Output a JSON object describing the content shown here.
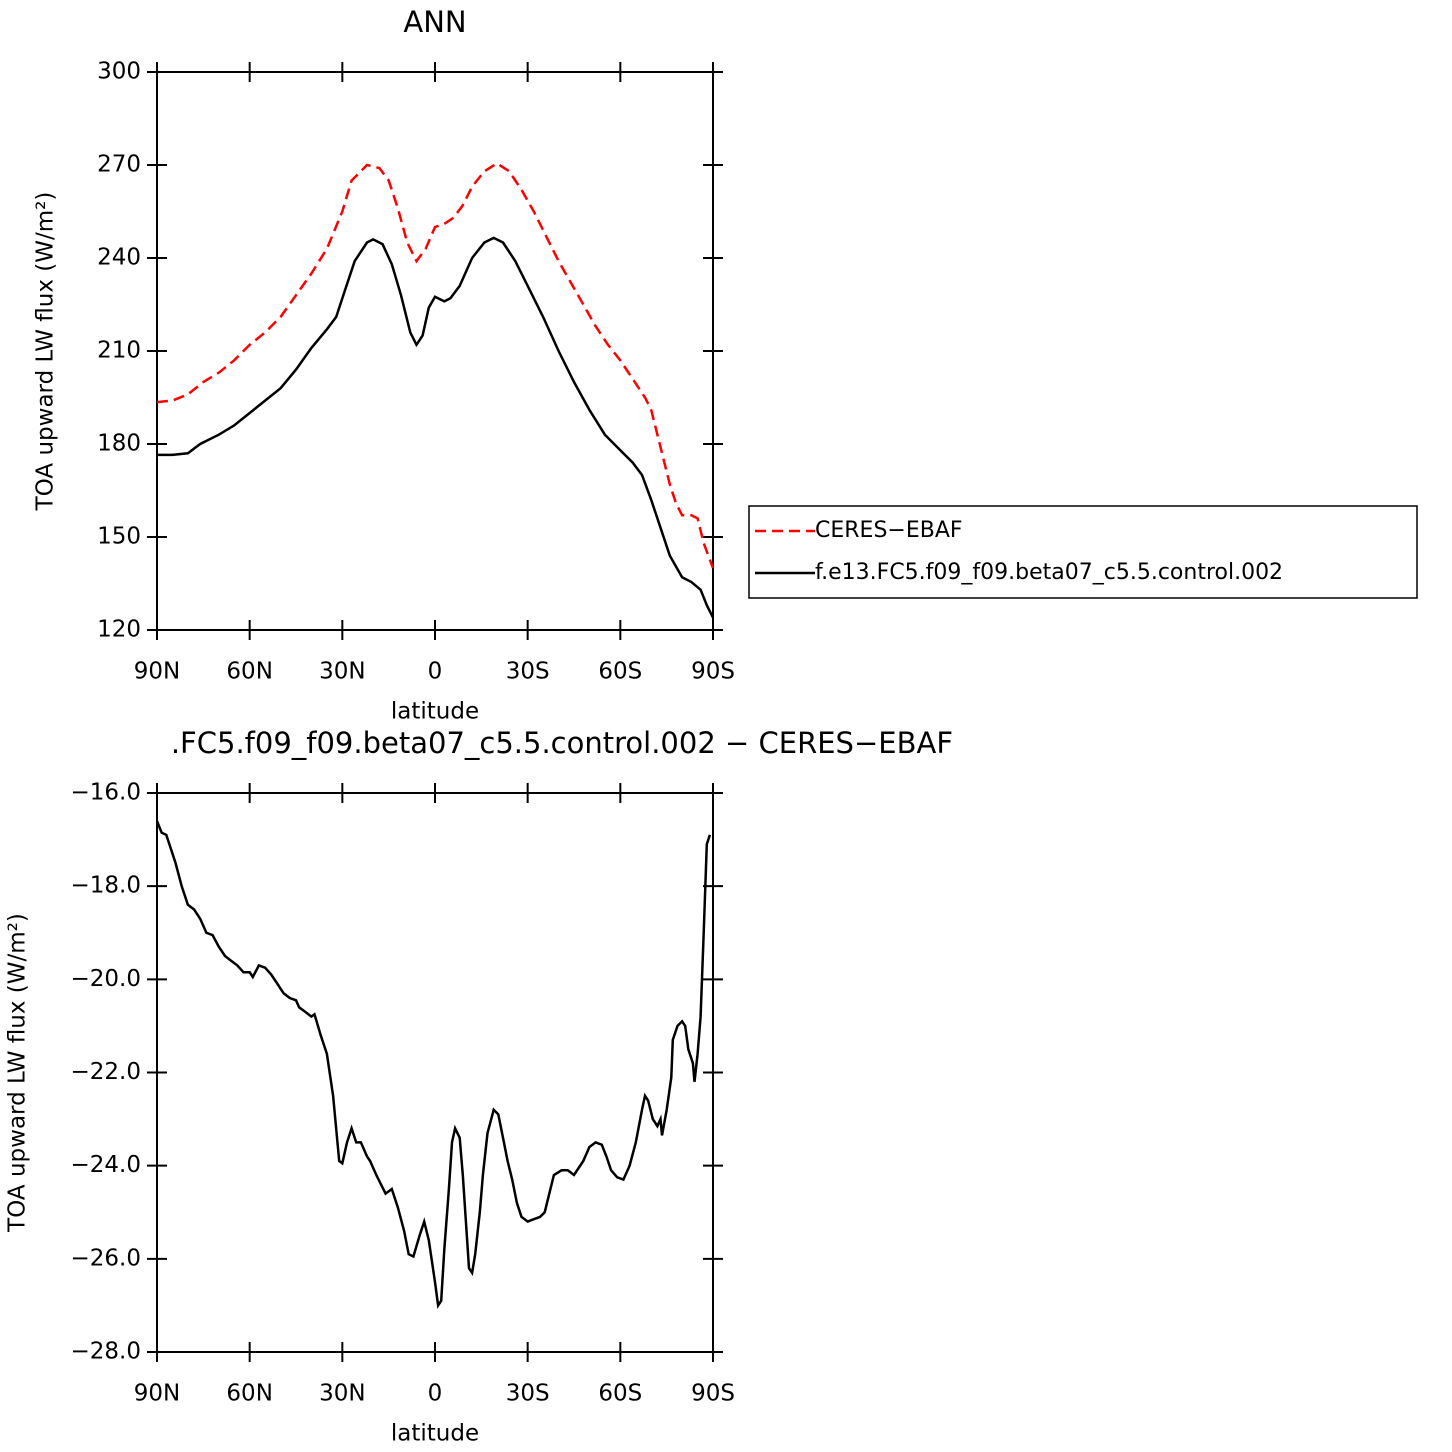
{
  "chart_data": [
    {
      "type": "line",
      "title": "ANN",
      "ylabel": "TOA upward LW flux (W/m²)",
      "xlabel": "latitude",
      "xlim": [
        90,
        -90
      ],
      "xticks": [
        {
          "value": 90,
          "label": "90N"
        },
        {
          "value": 60,
          "label": "60N"
        },
        {
          "value": 30,
          "label": "30N"
        },
        0,
        {
          "value": -30,
          "label": "30S"
        },
        {
          "value": -60,
          "label": "60S"
        },
        {
          "value": -90,
          "label": "90S"
        }
      ],
      "ylim": [
        120,
        300
      ],
      "yticks": [
        120,
        150,
        180,
        210,
        240,
        270,
        300
      ],
      "legend": "right",
      "series": [
        {
          "name": "CERES−EBAF",
          "color": "#ff0000",
          "linestyle": "dashed",
          "x": [
            90,
            85,
            80,
            75,
            70,
            65,
            60,
            55,
            50,
            45,
            40,
            35,
            30,
            27,
            22,
            18,
            15,
            12,
            9,
            6,
            3,
            0,
            -3,
            -6,
            -9,
            -12,
            -16,
            -20,
            -24,
            -28,
            -32,
            -36,
            -40,
            -44,
            -48,
            -52,
            -56,
            -60,
            -64,
            -68,
            -70,
            -72,
            -74,
            -76,
            -78,
            -80,
            -83,
            -85,
            -87,
            -90
          ],
          "values": [
            193.5,
            194,
            196,
            200,
            203,
            207,
            212,
            216,
            221,
            228,
            235,
            243,
            255,
            265,
            270,
            269,
            265,
            256,
            245,
            239,
            243,
            250,
            251,
            253,
            257,
            263,
            268,
            270.5,
            268,
            262,
            255,
            247,
            239,
            232,
            225,
            218,
            212,
            207,
            201,
            195,
            191,
            183,
            175,
            167,
            161,
            157,
            157,
            156,
            148,
            140
          ]
        },
        {
          "name": "f.e13.FC5.f09_f09.beta07_c5.5.control.002",
          "color": "#000000",
          "linestyle": "solid",
          "x": [
            90,
            85,
            80,
            76,
            70,
            65,
            60,
            55,
            50,
            45,
            40,
            35,
            32,
            29,
            26,
            22,
            20,
            17,
            14,
            11,
            8,
            6,
            4,
            2,
            0,
            -3,
            -5,
            -8,
            -12,
            -16,
            -19,
            -22,
            -26,
            -30,
            -35,
            -40,
            -45,
            -50,
            -55,
            -60,
            -64,
            -67,
            -70,
            -73,
            -76,
            -80,
            -83,
            -86,
            -88,
            -90
          ],
          "values": [
            176.5,
            176.5,
            177,
            180,
            183,
            186,
            190,
            194,
            198,
            204,
            211,
            217,
            221,
            230,
            239,
            245,
            246,
            244.5,
            238,
            228,
            216,
            212,
            215,
            224,
            227.5,
            226,
            227,
            231,
            240,
            245,
            246.5,
            245,
            239,
            231,
            221,
            210,
            200,
            191,
            183,
            178,
            174,
            170,
            162,
            153,
            144,
            137,
            135.5,
            133,
            128,
            124
          ]
        }
      ]
    },
    {
      "type": "line",
      "title": ".FC5.f09_f09.beta07_c5.5.control.002 − CERES−EBAF",
      "ylabel": "TOA upward LW flux (W/m²)",
      "xlabel": "latitude",
      "xlim": [
        90,
        -90
      ],
      "xticks": [
        {
          "value": 90,
          "label": "90N"
        },
        {
          "value": 60,
          "label": "60N"
        },
        {
          "value": 30,
          "label": "30N"
        },
        0,
        {
          "value": -30,
          "label": "30S"
        },
        {
          "value": -60,
          "label": "60S"
        },
        {
          "value": -90,
          "label": "90S"
        }
      ],
      "ylim": [
        -28,
        -16
      ],
      "yticks": [
        {
          "value": -28,
          "label": "−28.0"
        },
        {
          "value": -26,
          "label": "−26.0"
        },
        {
          "value": -24,
          "label": "−24.0"
        },
        {
          "value": -22,
          "label": "−22.0"
        },
        {
          "value": -20,
          "label": "−20.0"
        },
        {
          "value": -18,
          "label": "−18.0"
        },
        {
          "value": -16,
          "label": "−16.0"
        }
      ],
      "series": [
        {
          "color": "#000000",
          "linestyle": "solid",
          "x": [
            90,
            88.5,
            87,
            85.5,
            84,
            82,
            80,
            78,
            76,
            74,
            72,
            70,
            68,
            66,
            64,
            62,
            60,
            59,
            57,
            55,
            53,
            51,
            49,
            47,
            45,
            44,
            42,
            40,
            39,
            37,
            35,
            33,
            31,
            30,
            28.5,
            27,
            25.5,
            24,
            22,
            21,
            19,
            16,
            14,
            12,
            10,
            8.5,
            7,
            5,
            3.5,
            2,
            0,
            -1,
            -2,
            -3,
            -4.5,
            -5.5,
            -6.5,
            -8,
            -9,
            -10,
            -11,
            -12,
            -13,
            -14.5,
            -15.5,
            -17,
            -19,
            -20.5,
            -22,
            -23.5,
            -25,
            -26.5,
            -28,
            -30,
            -32,
            -34,
            -35.5,
            -37,
            -38.5,
            -41,
            -43,
            -45,
            -48,
            -50,
            -52,
            -54,
            -55.5,
            -57,
            -59,
            -61,
            -63,
            -65,
            -67,
            -68,
            -69,
            -70.5,
            -72,
            -73,
            -73.5,
            -75,
            -76.5,
            -77,
            -78.5,
            -80,
            -81,
            -82,
            -83.5,
            -84,
            -85,
            -86,
            -87,
            -88,
            -89
          ],
          "values": [
            -16.6,
            -16.85,
            -16.9,
            -17.2,
            -17.5,
            -18.0,
            -18.4,
            -18.5,
            -18.7,
            -19.0,
            -19.05,
            -19.3,
            -19.5,
            -19.6,
            -19.7,
            -19.85,
            -19.85,
            -19.95,
            -19.7,
            -19.75,
            -19.9,
            -20.1,
            -20.3,
            -20.4,
            -20.45,
            -20.6,
            -20.7,
            -20.8,
            -20.75,
            -21.2,
            -21.6,
            -22.5,
            -23.9,
            -23.95,
            -23.5,
            -23.2,
            -23.5,
            -23.5,
            -23.8,
            -23.9,
            -24.2,
            -24.6,
            -24.5,
            -24.9,
            -25.4,
            -25.9,
            -25.95,
            -25.5,
            -25.2,
            -25.6,
            -26.5,
            -27.0,
            -26.9,
            -25.8,
            -24.5,
            -23.5,
            -23.2,
            -23.4,
            -24.2,
            -25.2,
            -26.2,
            -26.3,
            -25.9,
            -25.0,
            -24.2,
            -23.3,
            -22.8,
            -22.9,
            -23.4,
            -23.9,
            -24.3,
            -24.8,
            -25.1,
            -25.2,
            -25.15,
            -25.1,
            -25.0,
            -24.6,
            -24.2,
            -24.1,
            -24.1,
            -24.2,
            -23.9,
            -23.6,
            -23.5,
            -23.55,
            -23.8,
            -24.1,
            -24.25,
            -24.3,
            -24.0,
            -23.5,
            -22.8,
            -22.5,
            -22.6,
            -23.0,
            -23.15,
            -23.0,
            -23.35,
            -22.8,
            -22.1,
            -21.3,
            -21.0,
            -20.9,
            -21.0,
            -21.5,
            -21.8,
            -22.2,
            -21.6,
            -20.8,
            -19.0,
            -17.1,
            -16.9
          ]
        }
      ]
    }
  ]
}
